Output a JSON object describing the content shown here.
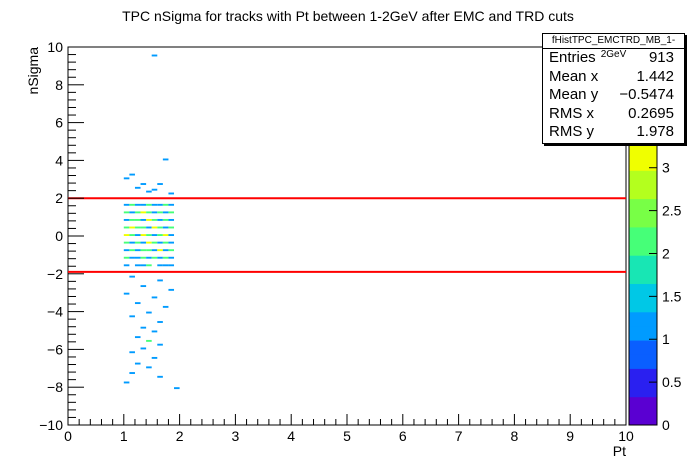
{
  "title": "TPC nSigma for tracks with Pt between 1-2GeV after EMC and TRD cuts",
  "stats": {
    "name": "fHistTPC_EMCTRD_MB_1-2GeV",
    "rows": [
      {
        "label": "Entries",
        "value": "913"
      },
      {
        "label": "Mean x",
        "value": "1.442"
      },
      {
        "label": "Mean y",
        "value": "−0.5474"
      },
      {
        "label": "RMS x",
        "value": "0.2695"
      },
      {
        "label": "RMS y",
        "value": "1.978"
      }
    ]
  },
  "chart_data": {
    "type": "heatmap",
    "title": "TPC nSigma for tracks with Pt between 1-2GeV after EMC and TRD cuts",
    "xlabel": "Pt",
    "ylabel": "nSigma",
    "xlim": [
      0,
      10
    ],
    "ylim": [
      -10,
      10
    ],
    "x_ticks": [
      "0",
      "1",
      "2",
      "3",
      "4",
      "5",
      "6",
      "7",
      "8",
      "9",
      "10"
    ],
    "y_ticks": [
      "−10",
      "−8",
      "−6",
      "−4",
      "−2",
      "0",
      "2",
      "4",
      "6",
      "8",
      "10"
    ],
    "z_ticks": [
      "0",
      "0.5",
      "1",
      "1.5",
      "2",
      "2.5",
      "3"
    ],
    "zlim": [
      0,
      3.3
    ],
    "cut_lines": [
      2,
      -1.9
    ],
    "cut_color": "#ff0000",
    "bin_width_x": 0.1,
    "bin_height_y": 0.1,
    "cells": [
      [
        1.5,
        9.5,
        1
      ],
      [
        1.7,
        4.0,
        1
      ],
      [
        1.1,
        3.2,
        1
      ],
      [
        1.3,
        2.7,
        1
      ],
      [
        1.6,
        2.7,
        1
      ],
      [
        1.2,
        2.5,
        1
      ],
      [
        1.0,
        3.0,
        1
      ],
      [
        1.5,
        2.4,
        1
      ],
      [
        1.8,
        2.2,
        1
      ],
      [
        1.4,
        2.3,
        1
      ],
      [
        1.0,
        1.6,
        1
      ],
      [
        1.1,
        1.6,
        2
      ],
      [
        1.2,
        1.6,
        1
      ],
      [
        1.3,
        1.6,
        1
      ],
      [
        1.4,
        1.6,
        2
      ],
      [
        1.5,
        1.6,
        1
      ],
      [
        1.6,
        1.6,
        1
      ],
      [
        1.7,
        1.6,
        2
      ],
      [
        1.8,
        1.6,
        1
      ],
      [
        1.0,
        1.2,
        2
      ],
      [
        1.1,
        1.2,
        1
      ],
      [
        1.2,
        1.2,
        2
      ],
      [
        1.3,
        1.2,
        3
      ],
      [
        1.4,
        1.2,
        2
      ],
      [
        1.5,
        1.2,
        1
      ],
      [
        1.6,
        1.2,
        2
      ],
      [
        1.7,
        1.2,
        1
      ],
      [
        1.8,
        1.2,
        2
      ],
      [
        1.0,
        0.8,
        1
      ],
      [
        1.1,
        0.8,
        2
      ],
      [
        1.2,
        0.8,
        2
      ],
      [
        1.3,
        0.8,
        1
      ],
      [
        1.4,
        0.8,
        3
      ],
      [
        1.5,
        0.8,
        2
      ],
      [
        1.6,
        0.8,
        1
      ],
      [
        1.7,
        0.8,
        2
      ],
      [
        1.8,
        0.8,
        1
      ],
      [
        1.0,
        0.4,
        2
      ],
      [
        1.1,
        0.4,
        3
      ],
      [
        1.2,
        0.4,
        2
      ],
      [
        1.3,
        0.4,
        2
      ],
      [
        1.4,
        0.4,
        1
      ],
      [
        1.5,
        0.4,
        3
      ],
      [
        1.6,
        0.4,
        2
      ],
      [
        1.7,
        0.4,
        1
      ],
      [
        1.8,
        0.4,
        2
      ],
      [
        1.0,
        0.0,
        3
      ],
      [
        1.1,
        0.0,
        2
      ],
      [
        1.2,
        0.0,
        1
      ],
      [
        1.3,
        0.0,
        3
      ],
      [
        1.4,
        0.0,
        2
      ],
      [
        1.5,
        0.0,
        1
      ],
      [
        1.6,
        0.0,
        2
      ],
      [
        1.7,
        0.0,
        3
      ],
      [
        1.8,
        0.0,
        1
      ],
      [
        1.0,
        -0.4,
        2
      ],
      [
        1.1,
        -0.4,
        1
      ],
      [
        1.2,
        -0.4,
        2
      ],
      [
        1.3,
        -0.4,
        1
      ],
      [
        1.4,
        -0.4,
        3
      ],
      [
        1.5,
        -0.4,
        2
      ],
      [
        1.6,
        -0.4,
        1
      ],
      [
        1.7,
        -0.4,
        2
      ],
      [
        1.8,
        -0.4,
        1
      ],
      [
        1.0,
        -0.8,
        1
      ],
      [
        1.1,
        -0.8,
        2
      ],
      [
        1.2,
        -0.8,
        1
      ],
      [
        1.3,
        -0.8,
        2
      ],
      [
        1.4,
        -0.8,
        2
      ],
      [
        1.5,
        -0.8,
        1
      ],
      [
        1.6,
        -0.8,
        3
      ],
      [
        1.7,
        -0.8,
        1
      ],
      [
        1.8,
        -0.8,
        2
      ],
      [
        1.0,
        -1.2,
        2
      ],
      [
        1.1,
        -1.2,
        1
      ],
      [
        1.2,
        -1.2,
        1
      ],
      [
        1.3,
        -1.2,
        2
      ],
      [
        1.4,
        -1.2,
        1
      ],
      [
        1.5,
        -1.2,
        2
      ],
      [
        1.6,
        -1.2,
        1
      ],
      [
        1.7,
        -1.2,
        2
      ],
      [
        1.8,
        -1.2,
        1
      ],
      [
        1.0,
        -1.6,
        1
      ],
      [
        1.2,
        -1.6,
        1
      ],
      [
        1.4,
        -1.6,
        2
      ],
      [
        1.6,
        -1.6,
        1
      ],
      [
        1.8,
        -1.6,
        1
      ],
      [
        1.3,
        -1.6,
        1
      ],
      [
        1.7,
        -1.6,
        1
      ],
      [
        1.1,
        -2.2,
        1
      ],
      [
        1.6,
        -2.4,
        1
      ],
      [
        1.3,
        -2.7,
        1
      ],
      [
        1.8,
        -2.9,
        1
      ],
      [
        1.0,
        -3.1,
        1
      ],
      [
        1.5,
        -3.3,
        1
      ],
      [
        1.2,
        -3.6,
        1
      ],
      [
        1.7,
        -3.8,
        1
      ],
      [
        1.4,
        -4.1,
        1
      ],
      [
        1.1,
        -4.3,
        1
      ],
      [
        1.6,
        -4.6,
        1
      ],
      [
        1.3,
        -4.9,
        1
      ],
      [
        1.5,
        -5.1,
        1
      ],
      [
        1.2,
        -5.4,
        1
      ],
      [
        1.4,
        -5.6,
        2
      ],
      [
        1.6,
        -5.8,
        1
      ],
      [
        1.3,
        -6.0,
        1
      ],
      [
        1.1,
        -6.2,
        1
      ],
      [
        1.5,
        -6.5,
        1
      ],
      [
        1.2,
        -6.8,
        1
      ],
      [
        1.4,
        -7.0,
        1
      ],
      [
        1.1,
        -7.3,
        1
      ],
      [
        1.6,
        -7.5,
        1
      ],
      [
        1.0,
        -7.8,
        1
      ],
      [
        1.9,
        -8.1,
        1
      ]
    ]
  }
}
